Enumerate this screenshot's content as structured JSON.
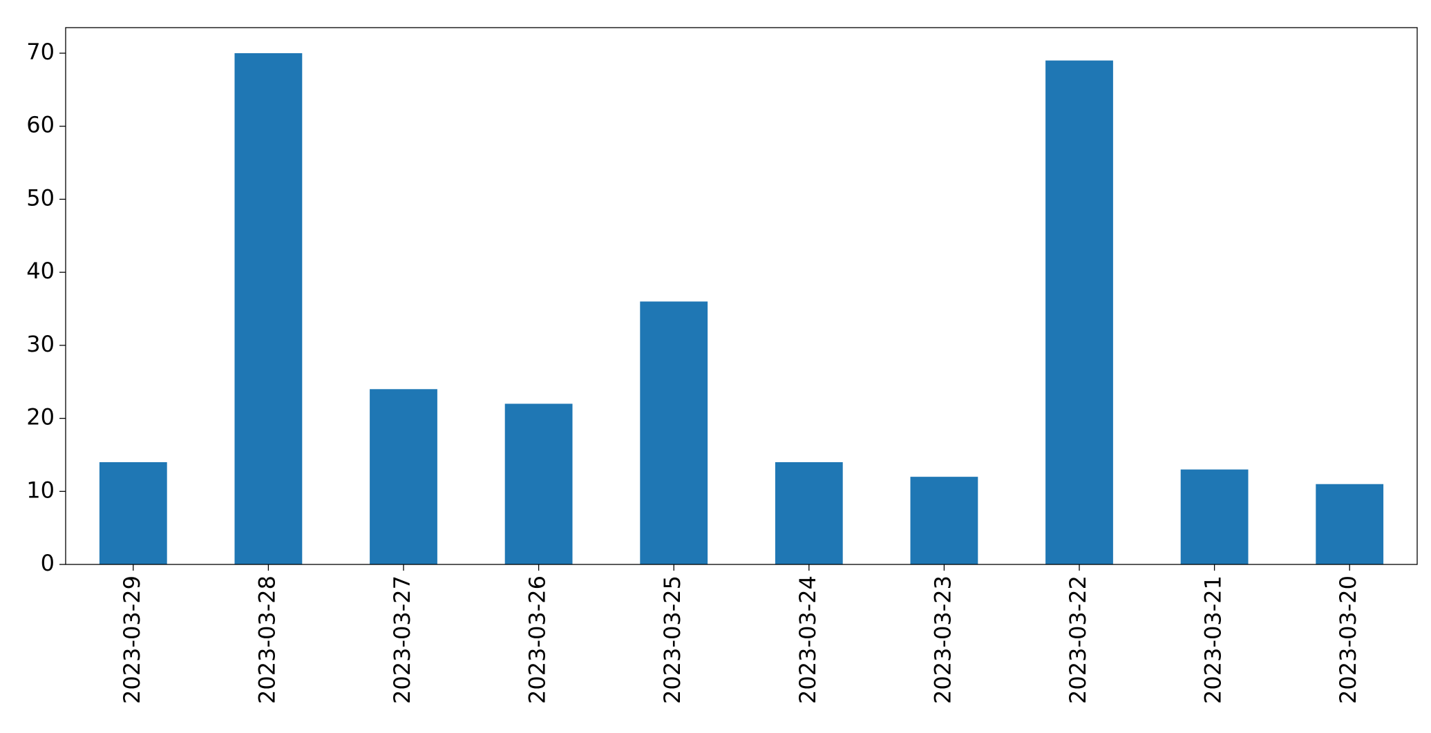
{
  "chart_data": {
    "type": "bar",
    "categories": [
      "2023-03-29",
      "2023-03-28",
      "2023-03-27",
      "2023-03-26",
      "2023-03-25",
      "2023-03-24",
      "2023-03-23",
      "2023-03-22",
      "2023-03-21",
      "2023-03-20"
    ],
    "values": [
      14,
      70,
      24,
      22,
      36,
      14,
      12,
      69,
      13,
      11
    ],
    "color": "#1f77b4",
    "ylim": [
      0,
      73.5
    ],
    "yticks": [
      0,
      10,
      20,
      30,
      40,
      50,
      60,
      70
    ],
    "grid": false
  }
}
